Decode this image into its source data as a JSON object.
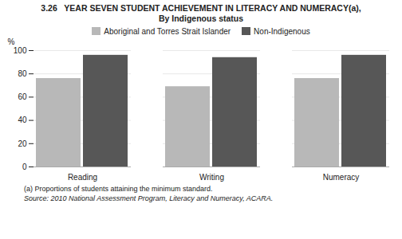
{
  "chart_data": {
    "type": "bar",
    "title": "3.26   YEAR SEVEN STUDENT ACHIEVEMENT IN LITERACY AND NUMERACY(a),",
    "subtitle": "By Indigenous status",
    "categories": [
      "Reading",
      "Writing",
      "Numeracy"
    ],
    "series": [
      {
        "name": "Aboriginal and Torres Strait Islander",
        "color": "#b8b8b8",
        "values": [
          76,
          69,
          76
        ]
      },
      {
        "name": "Non-Indigenous",
        "color": "#575757",
        "values": [
          96,
          94,
          96
        ]
      }
    ],
    "ylabel": "%",
    "ylim": [
      0,
      100
    ],
    "yticks": [
      0,
      20,
      40,
      60,
      80,
      100
    ],
    "grid": true,
    "legend": "top",
    "footnotes": [
      "(a) Proportions of students attaining the minimum standard.",
      "Source: 2010 National Assessment Program, Literacy and Numeracy, ACARA."
    ]
  }
}
